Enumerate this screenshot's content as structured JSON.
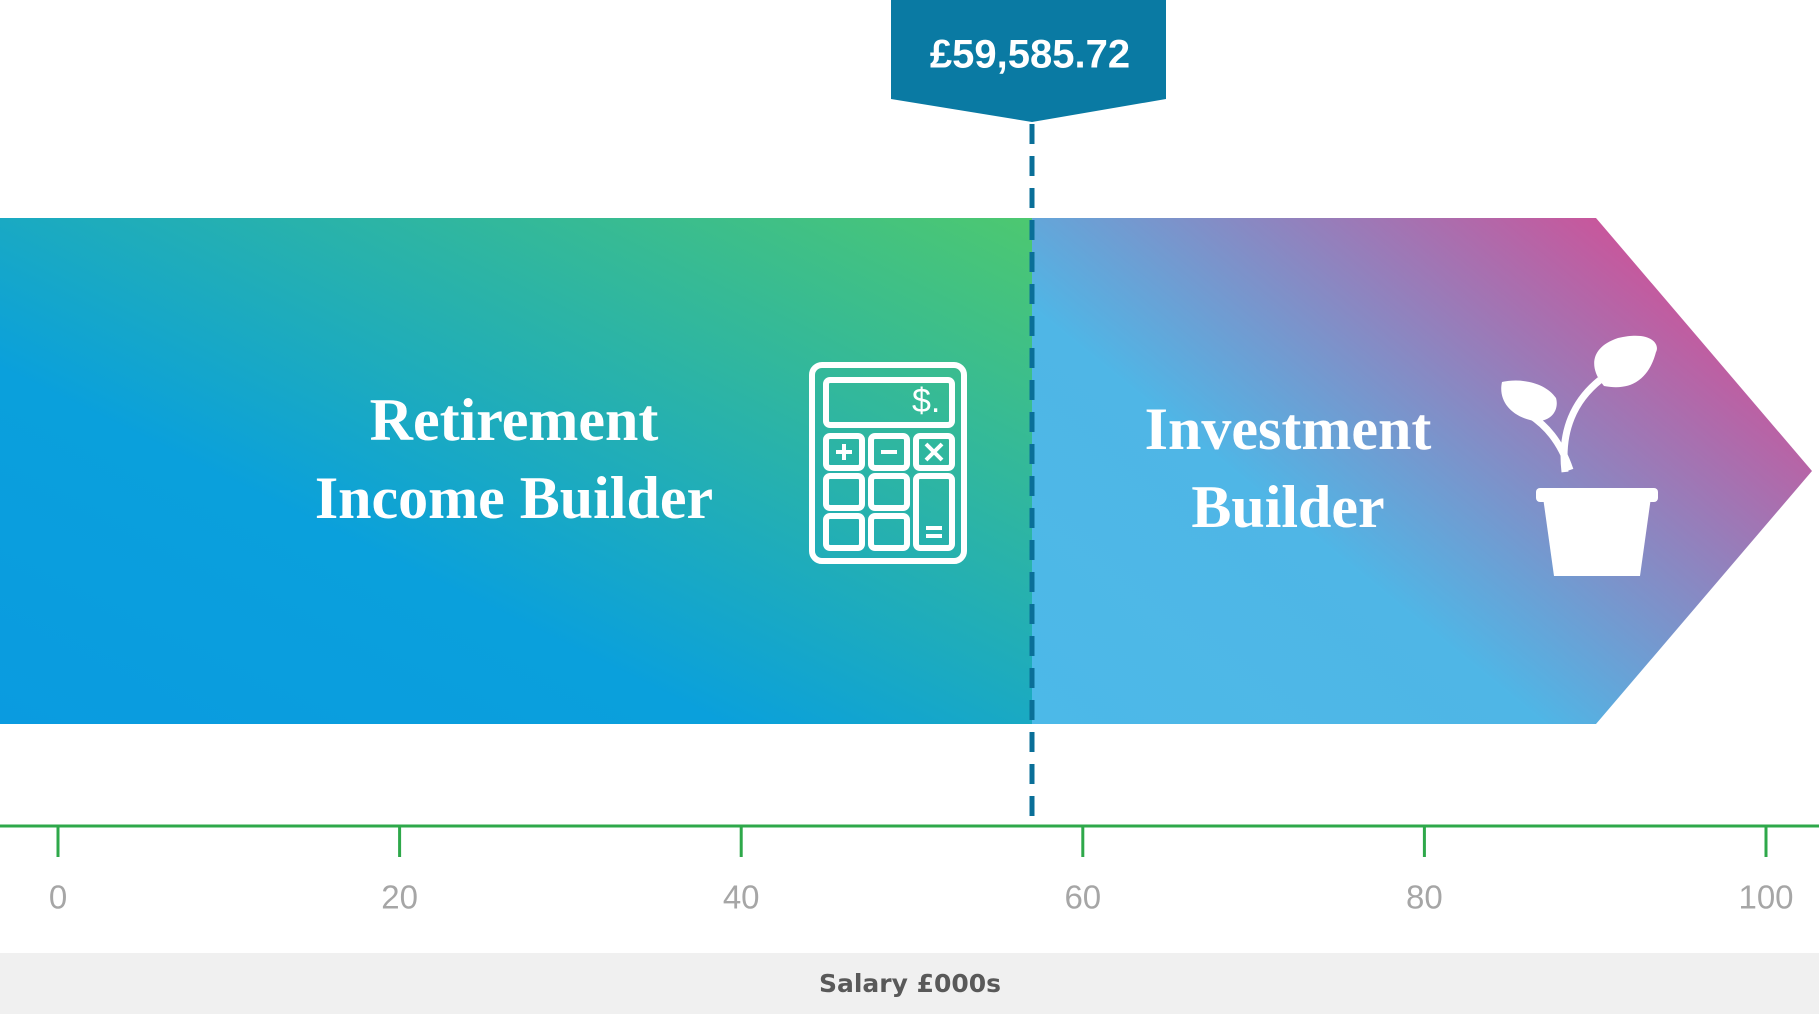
{
  "marker": {
    "label": "£59,585.72"
  },
  "segments": [
    {
      "lines": [
        "Retirement",
        "Income Builder"
      ]
    },
    {
      "lines": [
        "Investment",
        "Builder"
      ]
    }
  ],
  "axis": {
    "xlim": [
      0,
      100
    ],
    "ticks": [
      0,
      20,
      40,
      60,
      80,
      100
    ],
    "title": "Salary £000s"
  }
}
